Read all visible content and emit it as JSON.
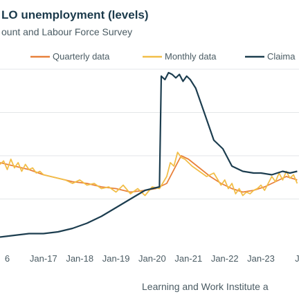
{
  "chart_data": {
    "type": "line",
    "title": "LO unemployment (levels)",
    "subtitle": "ount and Labour Force Survey",
    "source": "Learning and Work Institute a",
    "legend_position": "top",
    "grid": "horizontal",
    "x_tick_labels": [
      "6",
      "Jan-17",
      "Jan-18",
      "Jan-19",
      "Jan-20",
      "Jan-21",
      "Jan-22",
      "Jan-23",
      "J"
    ],
    "x_tick_values": [
      2016.0,
      2017.0,
      2018.0,
      2019.0,
      2020.0,
      2021.0,
      2022.0,
      2023.0,
      2024.0
    ],
    "xlim": [
      2015.8,
      2024.05
    ],
    "ylim": [
      0,
      100
    ],
    "series": [
      {
        "name": "Quarterly data",
        "color": "#e8803a",
        "x": [
          2015.8,
          2016.2,
          2016.6,
          2017.0,
          2017.4,
          2017.8,
          2018.2,
          2018.6,
          2019.0,
          2019.4,
          2019.8,
          2020.1,
          2020.4,
          2020.6,
          2020.8,
          2021.0,
          2021.3,
          2021.6,
          2021.9,
          2022.2,
          2022.5,
          2022.8,
          2023.1,
          2023.4,
          2023.7,
          2024.0
        ],
        "values": [
          46,
          44,
          42,
          39,
          37,
          35,
          34,
          32,
          31,
          29,
          30,
          31,
          34,
          42,
          50,
          48,
          43,
          38,
          34,
          31,
          29,
          30,
          32,
          35,
          38,
          36
        ]
      },
      {
        "name": "Monthly data",
        "color": "#f2be48",
        "x": [
          2015.8,
          2015.9,
          2016.0,
          2016.1,
          2016.2,
          2016.3,
          2016.4,
          2016.5,
          2016.6,
          2016.7,
          2016.8,
          2016.9,
          2017.0,
          2017.2,
          2017.4,
          2017.6,
          2017.8,
          2018.0,
          2018.2,
          2018.4,
          2018.6,
          2018.8,
          2019.0,
          2019.2,
          2019.4,
          2019.6,
          2019.8,
          2020.0,
          2020.2,
          2020.4,
          2020.5,
          2020.6,
          2020.7,
          2020.8,
          2020.9,
          2021.0,
          2021.1,
          2021.3,
          2021.5,
          2021.7,
          2021.9,
          2022.0,
          2022.1,
          2022.2,
          2022.3,
          2022.4,
          2022.5,
          2022.6,
          2022.7,
          2022.8,
          2022.9,
          2023.0,
          2023.1,
          2023.2,
          2023.3,
          2023.4,
          2023.5,
          2023.6,
          2023.7,
          2023.8,
          2023.9,
          2024.0
        ],
        "values": [
          45,
          47,
          42,
          48,
          43,
          46,
          41,
          45,
          42,
          43,
          40,
          41,
          39,
          38,
          37,
          36,
          34,
          36,
          33,
          34,
          31,
          32,
          29,
          33,
          28,
          31,
          27,
          32,
          31,
          38,
          46,
          44,
          52,
          49,
          48,
          46,
          44,
          41,
          38,
          40,
          33,
          36,
          31,
          34,
          28,
          31,
          27,
          29,
          28,
          30,
          31,
          33,
          30,
          34,
          38,
          35,
          40,
          36,
          41,
          37,
          39,
          34
        ]
      },
      {
        "name": "Claima",
        "color": "#1c3d4f",
        "x": [
          2015.8,
          2016.2,
          2016.6,
          2017.0,
          2017.4,
          2017.8,
          2018.2,
          2018.6,
          2019.0,
          2019.4,
          2019.8,
          2020.2,
          2020.25,
          2020.35,
          2020.45,
          2020.55,
          2020.65,
          2020.75,
          2020.85,
          2020.95,
          2021.05,
          2021.2,
          2021.45,
          2021.7,
          2021.95,
          2022.2,
          2022.5,
          2022.8,
          2023.0,
          2023.3,
          2023.6,
          2023.8,
          2024.0
        ],
        "values": [
          3,
          4,
          5,
          5,
          6,
          8,
          11,
          15,
          20,
          25,
          30,
          32,
          96,
          94,
          98,
          97,
          95,
          97,
          93,
          96,
          94,
          89,
          74,
          59,
          54,
          44,
          41,
          40,
          40,
          39,
          41,
          40,
          41
        ]
      }
    ]
  }
}
